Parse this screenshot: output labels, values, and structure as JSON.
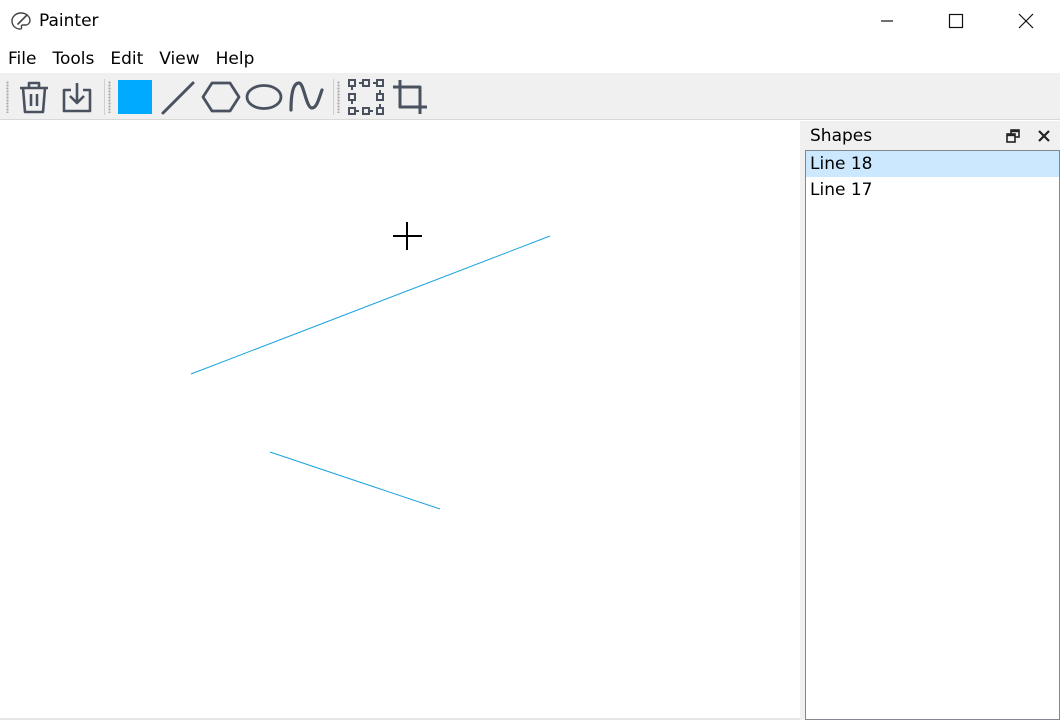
{
  "app": {
    "title": "Painter",
    "icon": "palette-icon"
  },
  "window_controls": [
    "minimize-icon",
    "maximize-icon",
    "close-icon"
  ],
  "menu": [
    "File",
    "Tools",
    "Edit",
    "View",
    "Help"
  ],
  "toolbar": {
    "tools": [
      {
        "name": "clear-canvas",
        "icon": "trash-icon"
      },
      {
        "name": "save",
        "icon": "download-icon"
      },
      {
        "name": "fill-color",
        "icon": "color-swatch-icon",
        "color": "#00aaff"
      },
      {
        "name": "line-tool",
        "icon": "line-icon"
      },
      {
        "name": "polygon-tool",
        "icon": "hexagon-icon"
      },
      {
        "name": "ellipse-tool",
        "icon": "ellipse-icon"
      },
      {
        "name": "curve-tool",
        "icon": "curve-icon"
      },
      {
        "name": "select-tool",
        "icon": "selection-box-icon"
      },
      {
        "name": "crop-tool",
        "icon": "crop-icon"
      }
    ]
  },
  "canvas": {
    "stroke_color": "#1aa3e0",
    "cursor": "crosshair-icon"
  },
  "shapes_panel": {
    "title": "Shapes",
    "items": [
      {
        "label": "Line 18",
        "selected": true
      },
      {
        "label": "Line 17",
        "selected": false
      }
    ]
  },
  "colors": {
    "selection": "#cce8ff",
    "toolbar_bg": "#f0f0f0",
    "icon": "#4a5260"
  }
}
